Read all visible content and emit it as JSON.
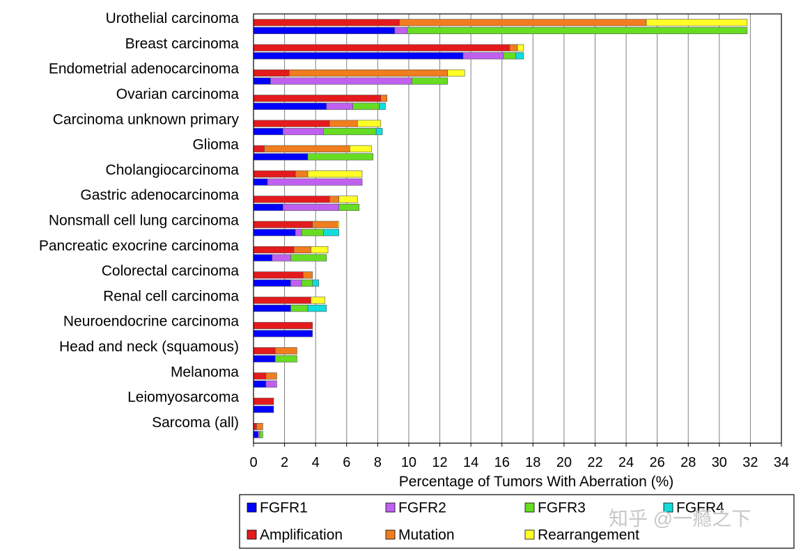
{
  "chart_data": {
    "type": "bar",
    "orientation": "horizontal-stacked",
    "title": "",
    "xlabel": "Percentage of Tumors With Aberration (%)",
    "ylabel": "",
    "xlim": [
      0,
      34
    ],
    "xticks": [
      0,
      2,
      4,
      6,
      8,
      10,
      12,
      14,
      16,
      18,
      20,
      22,
      24,
      26,
      28,
      30,
      32,
      34
    ],
    "grid": "vertical",
    "categories": [
      "Urothelial carcinoma",
      "Breast carcinoma",
      "Endometrial adenocarcinoma",
      "Ovarian carcinoma",
      "Carcinoma unknown primary",
      "Glioma",
      "Cholangiocarcinoma",
      "Gastric adenocarcinoma",
      "Nonsmall cell lung carcinoma",
      "Pancreatic exocrine carcinoma",
      "Colorectal carcinoma",
      "Renal cell carcinoma",
      "Neuroendocrine carcinoma",
      "Head and neck (squamous)",
      "Melanoma",
      "Leiomyosarcoma",
      "Sarcoma (all)"
    ],
    "aberration_series": [
      {
        "name": "Amplification",
        "color": "#e41a1c",
        "values": [
          9.4,
          16.5,
          2.3,
          8.2,
          4.9,
          0.7,
          2.7,
          4.9,
          3.8,
          2.6,
          3.2,
          3.7,
          3.8,
          1.4,
          0.8,
          1.3,
          0.2
        ]
      },
      {
        "name": "Mutation",
        "color": "#f07d1e",
        "values": [
          15.9,
          0.5,
          10.2,
          0.4,
          1.8,
          5.5,
          0.8,
          0.6,
          1.6,
          1.1,
          0.6,
          0,
          0,
          1.4,
          0.7,
          0,
          0.4
        ]
      },
      {
        "name": "Rearrangement",
        "color": "#ffff26",
        "values": [
          6.5,
          0.4,
          1.1,
          0,
          1.5,
          1.4,
          3.5,
          1.2,
          0.1,
          1.1,
          0,
          0.9,
          0,
          0,
          0,
          0,
          0
        ]
      }
    ],
    "gene_series": [
      {
        "name": "FGFR1",
        "color": "#0000ff",
        "values": [
          9.1,
          13.5,
          1.1,
          4.7,
          1.9,
          3.5,
          0.9,
          1.9,
          2.7,
          1.2,
          2.4,
          2.4,
          3.8,
          1.4,
          0.8,
          1.3,
          0.3
        ]
      },
      {
        "name": "FGFR2",
        "color": "#c060f0",
        "values": [
          0.8,
          2.6,
          9.1,
          1.7,
          2.6,
          0,
          6.1,
          3.6,
          0.4,
          1.2,
          0.7,
          0,
          0,
          0,
          0.7,
          0,
          0.1
        ]
      },
      {
        "name": "FGFR3",
        "color": "#66dd22",
        "values": [
          21.9,
          0.8,
          2.3,
          1.7,
          3.4,
          4.2,
          0,
          1.3,
          1.4,
          2.3,
          0.7,
          1.1,
          0,
          1.4,
          0,
          0,
          0.2
        ]
      },
      {
        "name": "FGFR4",
        "color": "#11dddd",
        "values": [
          0,
          0.5,
          0,
          0.4,
          0.4,
          0,
          0,
          0,
          1.0,
          0,
          0.4,
          1.2,
          0,
          0,
          0,
          0,
          0
        ]
      }
    ],
    "legend": {
      "position": "bottom",
      "rows": [
        [
          "FGFR1",
          "FGFR2",
          "FGFR3",
          "FGFR4"
        ],
        [
          "Amplification",
          "Mutation",
          "Rearrangement"
        ]
      ]
    }
  },
  "watermark": "知乎 @一瘾之下"
}
